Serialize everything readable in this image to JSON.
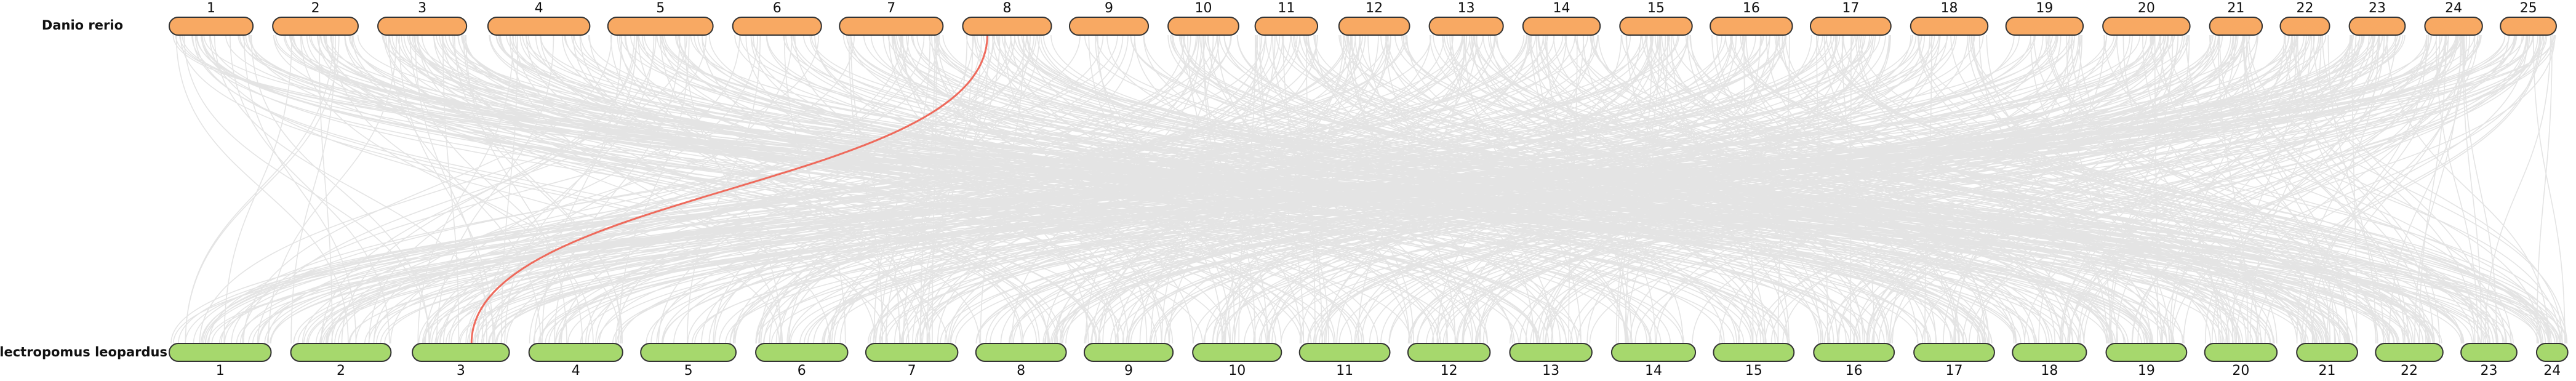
{
  "top_genome": {
    "name": "Danio rerio",
    "chromosomes": [
      "1",
      "2",
      "3",
      "4",
      "5",
      "6",
      "7",
      "8",
      "9",
      "10",
      "11",
      "12",
      "13",
      "14",
      "15",
      "16",
      "17",
      "18",
      "19",
      "20",
      "21",
      "22",
      "23",
      "24",
      "25"
    ]
  },
  "bottom_genome": {
    "name": "Plectropomus leopardus",
    "chromosomes": [
      "1",
      "2",
      "3",
      "4",
      "5",
      "6",
      "7",
      "8",
      "9",
      "10",
      "11",
      "12",
      "13",
      "14",
      "15",
      "16",
      "17",
      "18",
      "19",
      "20",
      "21",
      "22",
      "23",
      "24"
    ]
  }
}
